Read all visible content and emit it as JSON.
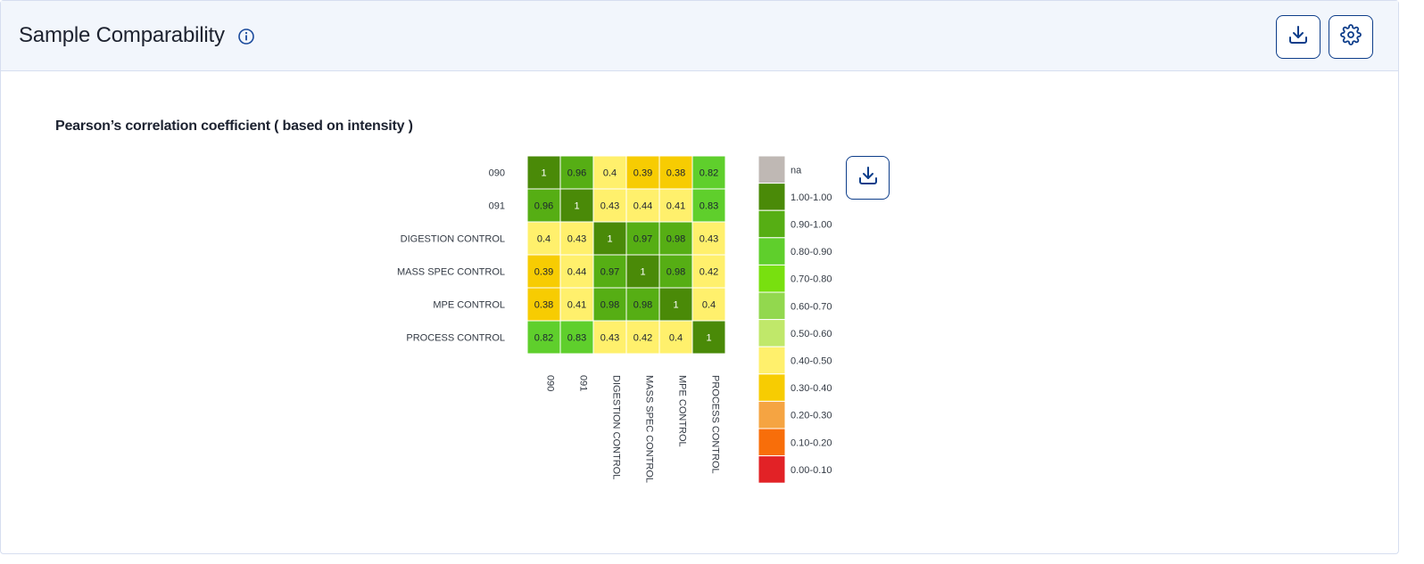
{
  "header": {
    "title": "Sample Comparability",
    "info_icon": "info-icon",
    "download_icon": "download-icon",
    "settings_icon": "gear-icon"
  },
  "chart_data": {
    "type": "heatmap",
    "title": "Pearson’s correlation coefficient ( based on intensity )",
    "rows": [
      "090",
      "091",
      "DIGESTION CONTROL",
      "MASS SPEC CONTROL",
      "MPE CONTROL",
      "PROCESS CONTROL"
    ],
    "columns": [
      "090",
      "091",
      "DIGESTION CONTROL",
      "MASS SPEC CONTROL",
      "MPE CONTROL",
      "PROCESS CONTROL"
    ],
    "values": [
      [
        1,
        0.96,
        0.4,
        0.39,
        0.38,
        0.82
      ],
      [
        0.96,
        1,
        0.43,
        0.44,
        0.41,
        0.83
      ],
      [
        0.4,
        0.43,
        1,
        0.97,
        0.98,
        0.43
      ],
      [
        0.39,
        0.44,
        0.97,
        1,
        0.98,
        0.42
      ],
      [
        0.38,
        0.41,
        0.98,
        0.98,
        1,
        0.4
      ],
      [
        0.82,
        0.83,
        0.43,
        0.42,
        0.4,
        1
      ]
    ],
    "legend": [
      {
        "label": "na",
        "color": "#bfb8b4"
      },
      {
        "label": "1.00-1.00",
        "color": "#4a8a08"
      },
      {
        "label": "0.90-1.00",
        "color": "#56ae14"
      },
      {
        "label": "0.80-0.90",
        "color": "#5fcf2c"
      },
      {
        "label": "0.70-0.80",
        "color": "#78e00f"
      },
      {
        "label": "0.60-0.70",
        "color": "#92d84e"
      },
      {
        "label": "0.50-0.60",
        "color": "#c0e86a"
      },
      {
        "label": "0.40-0.50",
        "color": "#fff06c"
      },
      {
        "label": "0.30-0.40",
        "color": "#f7cc02"
      },
      {
        "label": "0.20-0.30",
        "color": "#f5a442"
      },
      {
        "label": "0.10-0.20",
        "color": "#f86e0a"
      },
      {
        "label": "0.00-0.10",
        "color": "#e22226"
      }
    ],
    "legend_placement": "right",
    "download_icon": "download-icon"
  }
}
